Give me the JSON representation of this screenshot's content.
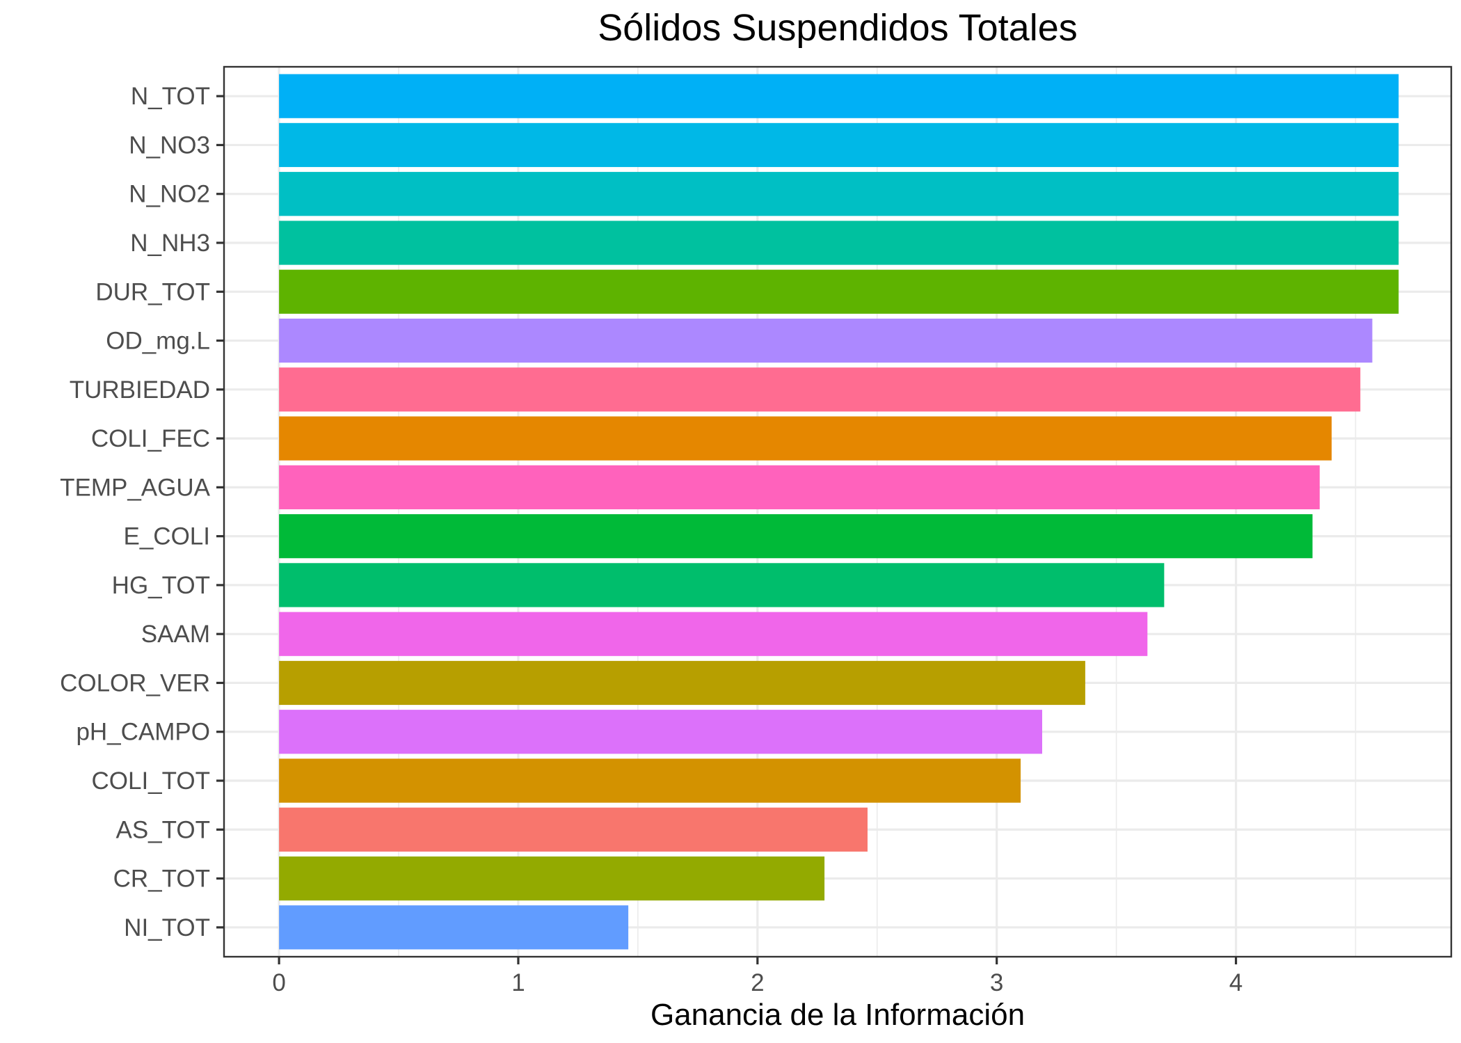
{
  "chart_data": {
    "type": "bar",
    "orientation": "horizontal",
    "title": "Sólidos Suspendidos Totales",
    "xlabel": "Ganancia de la Información",
    "ylabel": "",
    "xlim": [
      -0.23,
      4.9
    ],
    "x_ticks": [
      0,
      1,
      2,
      3,
      4
    ],
    "x_tick_labels": [
      "0",
      "1",
      "2",
      "3",
      "4"
    ],
    "grid": true,
    "legend": "none",
    "categories": [
      "N_TOT",
      "N_NO3",
      "N_NO2",
      "N_NH3",
      "DUR_TOT",
      "OD_mg.L",
      "TURBIEDAD",
      "COLI_FEC",
      "TEMP_AGUA",
      "E_COLI",
      "HG_TOT",
      "SAAM",
      "COLOR_VER",
      "pH_CAMPO",
      "COLI_TOT",
      "AS_TOT",
      "CR_TOT",
      "NI_TOT"
    ],
    "values": [
      4.68,
      4.68,
      4.68,
      4.68,
      4.68,
      4.57,
      4.52,
      4.4,
      4.35,
      4.32,
      3.7,
      3.63,
      3.37,
      3.19,
      3.1,
      2.46,
      2.28,
      1.46
    ],
    "colors": [
      "#00B0F6",
      "#00B8E7",
      "#00BFC4",
      "#00C19F",
      "#5EB300",
      "#AC88FF",
      "#FF6C91",
      "#E58700",
      "#FF62BC",
      "#00BA38",
      "#00BE6C",
      "#F066EA",
      "#B79F00",
      "#DC71FA",
      "#D39200",
      "#F8766D",
      "#93AA00",
      "#619CFF"
    ]
  }
}
